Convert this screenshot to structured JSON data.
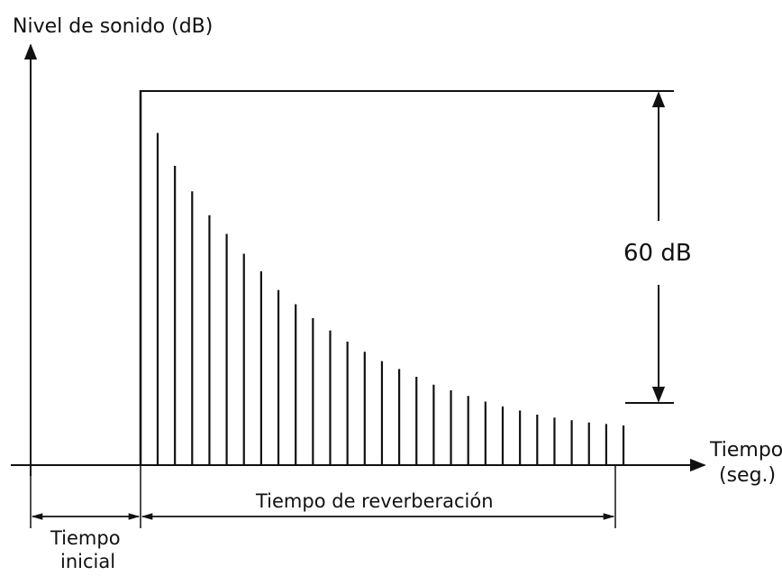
{
  "diagram": {
    "y_axis_label": "Nivel de sonido (dB)",
    "x_axis_label_line1": "Tiempo",
    "x_axis_label_line2": "(seg.)",
    "decay_label": "60 dB",
    "reverb_label": "Tiempo de reverberación",
    "initial_time_line1": "Tiempo",
    "initial_time_line2": "inicial",
    "decay_bar_levels": [
      0.888,
      0.8,
      0.732,
      0.668,
      0.618,
      0.565,
      0.518,
      0.468,
      0.43,
      0.393,
      0.36,
      0.33,
      0.303,
      0.278,
      0.257,
      0.236,
      0.215,
      0.2,
      0.185,
      0.17,
      0.157,
      0.146,
      0.135,
      0.127,
      0.12,
      0.114,
      0.11,
      0.106
    ],
    "colors": {
      "line": "#111111",
      "background": "#ffffff"
    }
  }
}
